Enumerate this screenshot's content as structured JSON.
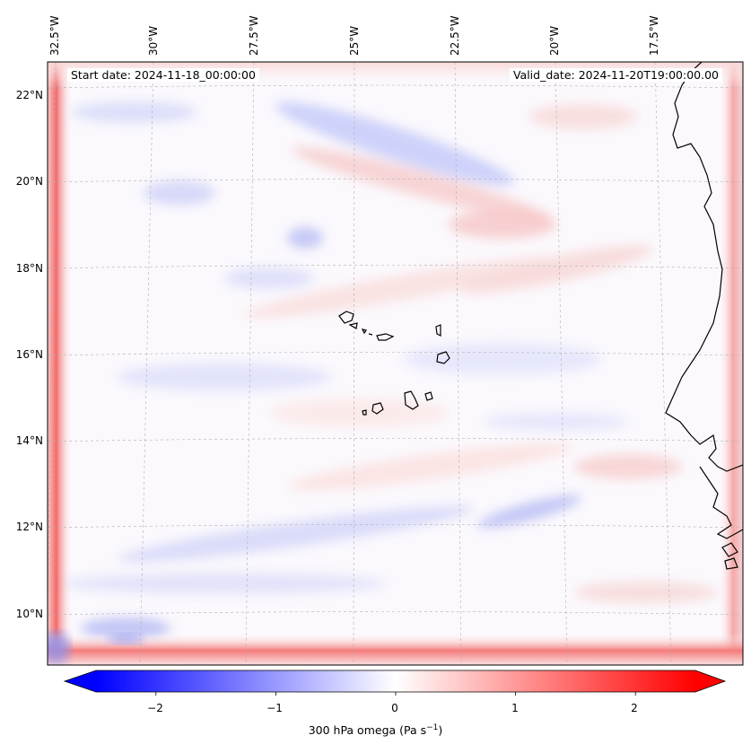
{
  "map": {
    "projection": "Lambert conformal",
    "lon_labels": [
      "32.5°W",
      "30°W",
      "27.5°W",
      "25°W",
      "22.5°W",
      "20°W",
      "17.5°W"
    ],
    "lat_labels": [
      "22°N",
      "20°N",
      "18°N",
      "16°N",
      "14°N",
      "12°N",
      "10°N"
    ],
    "start_date_text": "Start date: 2024-11-18_00:00:00",
    "valid_date_text": "Valid_date: 2024-11-20T19:00:00.00",
    "features": [
      "Cape Verde islands",
      "West African coastline"
    ]
  },
  "colorbar": {
    "label": "300 hPa omega (Pa s",
    "label_superscript": "−1",
    "label_close": ")",
    "ticks": [
      "−2",
      "−1",
      "0",
      "1",
      "2"
    ],
    "tick_values": [
      -2,
      -1,
      0,
      1,
      2
    ],
    "range": [
      -2.5,
      2.5
    ],
    "extend": "both",
    "colormap": "bwr",
    "color_low": "#0000ff",
    "color_mid": "#ffffff",
    "color_high": "#ff0000"
  }
}
